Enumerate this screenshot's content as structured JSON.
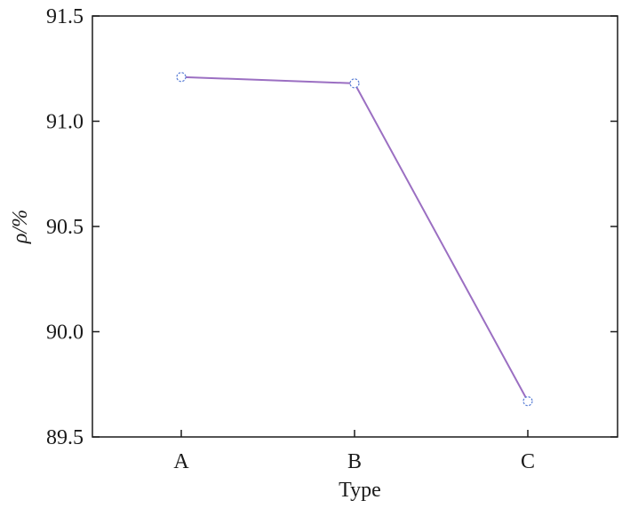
{
  "chart_data": {
    "type": "line",
    "categories": [
      "A",
      "B",
      "C"
    ],
    "series": [
      {
        "values": [
          91.21,
          91.18,
          89.67
        ]
      }
    ],
    "xlabel": "Type",
    "ylabel": "ρ/%",
    "ylim": [
      89.5,
      91.5
    ],
    "yticks": [
      "89.5",
      "90.0",
      "90.5",
      "91.0",
      "91.5"
    ],
    "grid": false,
    "colors": {
      "line": "#9b6fc2",
      "marker": "#5b7fd6",
      "axis": "#1a1a1a"
    }
  }
}
